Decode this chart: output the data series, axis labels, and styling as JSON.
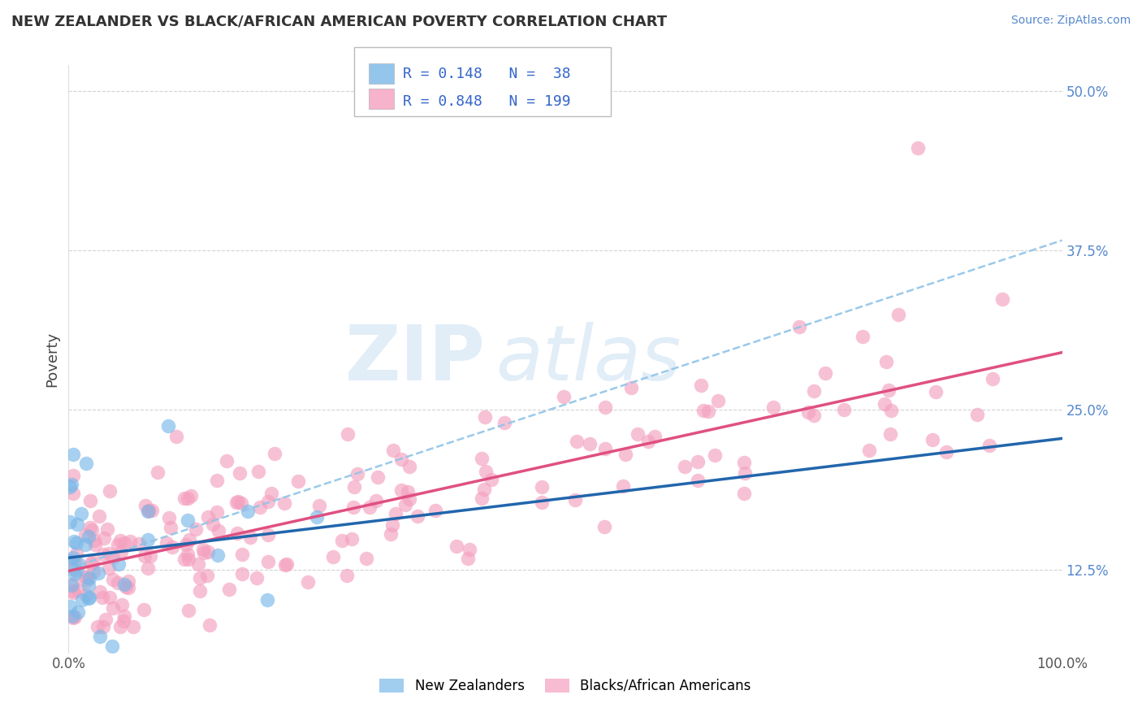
{
  "title": "NEW ZEALANDER VS BLACK/AFRICAN AMERICAN POVERTY CORRELATION CHART",
  "source": "Source: ZipAtlas.com",
  "ylabel": "Poverty",
  "xlim": [
    0,
    1.0
  ],
  "ylim": [
    0.06,
    0.52
  ],
  "ytick_labels": [
    "12.5%",
    "25.0%",
    "37.5%",
    "50.0%"
  ],
  "ytick_vals": [
    0.125,
    0.25,
    0.375,
    0.5
  ],
  "xtick_labels": [
    "0.0%",
    "100.0%"
  ],
  "xtick_vals": [
    0.0,
    1.0
  ],
  "nz_color": "#7ab8e8",
  "baa_color": "#f4a0bf",
  "nz_line_color": "#2166ac",
  "baa_line_color": "#e05080",
  "dash_line_color": "#90c4e8",
  "R_nz": 0.148,
  "N_nz": 38,
  "R_baa": 0.848,
  "N_baa": 199,
  "legend_label_nz": "New Zealanders",
  "legend_label_baa": "Blacks/African Americans",
  "watermark_zip": "ZIP",
  "watermark_atlas": "atlas",
  "background_color": "#ffffff",
  "grid_color": "#c8c8c8",
  "tick_color": "#5588cc",
  "title_color": "#333333",
  "source_color": "#5588cc"
}
